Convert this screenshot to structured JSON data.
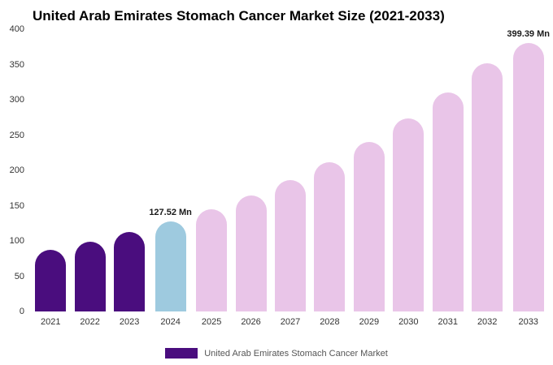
{
  "legend": {
    "label": "United Arab Emirates Stomach Cancer Market",
    "swatch_color": "#4a0d7e"
  },
  "chart_data": {
    "type": "bar",
    "title": "United Arab Emirates Stomach Cancer Market Size (2021-2033)",
    "xlabel": "",
    "ylabel": "",
    "ylim": [
      0,
      400
    ],
    "yticks": [
      0,
      50,
      100,
      150,
      200,
      250,
      300,
      350,
      400
    ],
    "grid": false,
    "legend_position": "bottom",
    "categories": [
      "2021",
      "2022",
      "2023",
      "2024",
      "2025",
      "2026",
      "2027",
      "2028",
      "2029",
      "2030",
      "2031",
      "2032",
      "2033"
    ],
    "values": [
      87.1,
      98.9,
      112.3,
      127.52,
      144.8,
      164.4,
      186.6,
      211.9,
      240.6,
      273.2,
      310.1,
      352.1,
      399.39
    ],
    "value_labels": [
      "",
      "",
      "",
      "127.52 Mn",
      "",
      "",
      "",
      "",
      "",
      "",
      "",
      "",
      "399.39 Mn"
    ],
    "bar_colors": [
      "#4a0d7e",
      "#4a0d7e",
      "#4a0d7e",
      "#9ecadf",
      "#e9c5e8",
      "#e9c5e8",
      "#e9c5e8",
      "#e9c5e8",
      "#e9c5e8",
      "#e9c5e8",
      "#e9c5e8",
      "#e9c5e8",
      "#e9c5e8"
    ],
    "colors": {
      "historical": "#4a0d7e",
      "current_year": "#9ecadf",
      "forecast": "#e9c5e8"
    }
  }
}
